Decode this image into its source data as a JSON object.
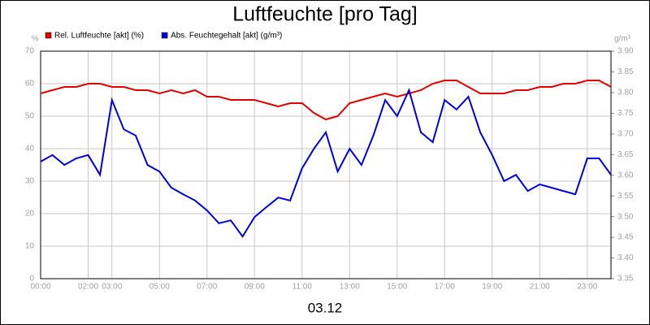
{
  "chart_data": {
    "type": "line",
    "title": "Luftfeuchte [pro Tag]",
    "xlabel": "03.12",
    "ylabel": "%",
    "y2label": "g/m³",
    "grid": true,
    "legend": "top-left",
    "x": [
      0,
      0.5,
      1,
      1.5,
      2,
      2.5,
      3,
      3.5,
      4,
      4.5,
      5,
      5.5,
      6,
      6.5,
      7,
      7.5,
      8,
      8.5,
      9,
      9.5,
      10,
      10.5,
      11,
      11.5,
      12,
      12.5,
      13,
      13.5,
      14,
      14.5,
      15,
      15.5,
      16,
      16.5,
      17,
      17.5,
      18,
      18.5,
      19,
      19.5,
      20,
      20.5,
      21,
      21.5,
      22,
      22.5,
      23,
      23.5,
      24
    ],
    "xlim": [
      0,
      24
    ],
    "xticks": [
      {
        "value": 0,
        "label": "00:00"
      },
      {
        "value": 2,
        "label": "02:00"
      },
      {
        "value": 3,
        "label": "03:00"
      },
      {
        "value": 5,
        "label": "05:00"
      },
      {
        "value": 7,
        "label": "07:00"
      },
      {
        "value": 9,
        "label": "09:00"
      },
      {
        "value": 11,
        "label": "11:00"
      },
      {
        "value": 13,
        "label": "13:00"
      },
      {
        "value": 15,
        "label": "15:00"
      },
      {
        "value": 17,
        "label": "17:00"
      },
      {
        "value": 19,
        "label": "19:00"
      },
      {
        "value": 21,
        "label": "21:00"
      },
      {
        "value": 23,
        "label": "23:00"
      }
    ],
    "ylim": [
      0,
      70
    ],
    "yticks": [
      0,
      10,
      20,
      30,
      40,
      50,
      60,
      70
    ],
    "y2lim": [
      3.35,
      3.9
    ],
    "y2ticks": [
      3.35,
      {
        "value": 3.4,
        "label": "3.40"
      },
      3.45,
      {
        "value": 3.5,
        "label": "3.50"
      },
      3.55,
      {
        "value": 3.6,
        "label": "3.60"
      },
      3.65,
      {
        "value": 3.7,
        "label": "3.70"
      },
      3.75,
      {
        "value": 3.8,
        "label": "3.80"
      },
      3.85,
      {
        "value": 3.9,
        "label": "3.90"
      }
    ],
    "series": [
      {
        "name": "Rel. Luftfeuchte [akt] (%)",
        "color": "#e00000",
        "values": [
          57,
          58,
          59,
          59,
          60,
          60,
          59,
          59,
          58,
          58,
          57,
          58,
          57,
          58,
          56,
          56,
          55,
          55,
          55,
          54,
          53,
          54,
          54,
          51,
          49,
          50,
          54,
          55,
          56,
          57,
          56,
          57,
          58,
          60,
          61,
          61,
          59,
          57,
          57,
          57,
          58,
          58,
          59,
          59,
          60,
          60,
          61,
          61,
          59
        ]
      },
      {
        "name": "Abs. Feuchtegehalt [akt] (g/m³)",
        "color": "#0000e0",
        "axis": "y2",
        "values": [
          3.633,
          3.649,
          3.625,
          3.641,
          3.649,
          3.601,
          3.782,
          3.711,
          3.696,
          3.625,
          3.609,
          3.57,
          3.554,
          3.539,
          3.515,
          3.484,
          3.491,
          3.452,
          3.499,
          3.523,
          3.546,
          3.539,
          3.617,
          3.664,
          3.704,
          3.609,
          3.664,
          3.625,
          3.696,
          3.782,
          3.743,
          3.806,
          3.704,
          3.68,
          3.782,
          3.759,
          3.79,
          3.704,
          3.649,
          3.586,
          3.601,
          3.562,
          3.578,
          3.57,
          3.562,
          3.554,
          3.641,
          3.641,
          3.601
        ]
      }
    ]
  }
}
